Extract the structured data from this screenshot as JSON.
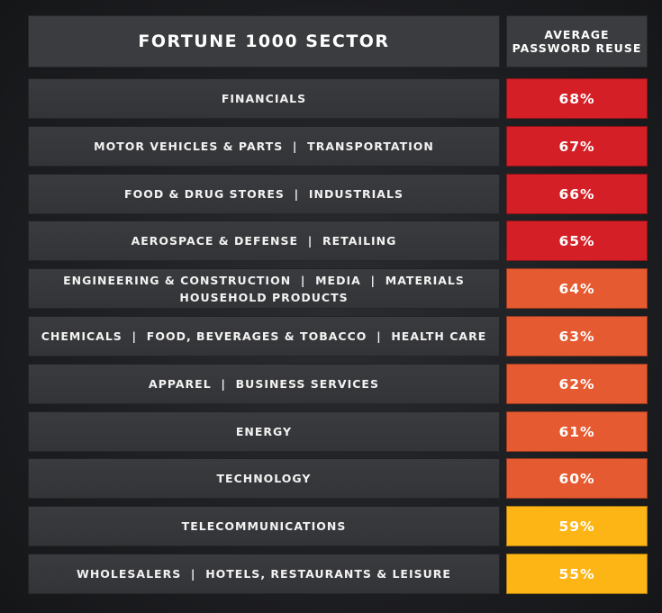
{
  "header": {
    "sector_title": "FORTUNE 1000 SECTOR",
    "metric_line1": "AVERAGE",
    "metric_line2": "PASSWORD REUSE"
  },
  "colors": {
    "high": "#d51f26",
    "mid": "#e55a30",
    "low": "#fdb515"
  },
  "chart_data": {
    "type": "table",
    "columns": [
      "FORTUNE 1000 SECTOR",
      "AVERAGE PASSWORD REUSE"
    ],
    "rows": [
      {
        "sector": "FINANCIALS",
        "sector_line2": "",
        "value": 68,
        "label": "68%",
        "color": "high"
      },
      {
        "sector": "MOTOR VEHICLES & PARTS  |  TRANSPORTATION",
        "sector_line2": "",
        "value": 67,
        "label": "67%",
        "color": "high"
      },
      {
        "sector": "FOOD & DRUG STORES  |  INDUSTRIALS",
        "sector_line2": "",
        "value": 66,
        "label": "66%",
        "color": "high"
      },
      {
        "sector": "AEROSPACE & DEFENSE  |  RETAILING",
        "sector_line2": "",
        "value": 65,
        "label": "65%",
        "color": "high"
      },
      {
        "sector": "ENGINEERING & CONSTRUCTION  |  MEDIA  |  MATERIALS",
        "sector_line2": "HOUSEHOLD PRODUCTS",
        "value": 64,
        "label": "64%",
        "color": "mid"
      },
      {
        "sector": "CHEMICALS  |  FOOD, BEVERAGES & TOBACCO  |  HEALTH CARE",
        "sector_line2": "",
        "value": 63,
        "label": "63%",
        "color": "mid"
      },
      {
        "sector": "APPAREL  |  BUSINESS SERVICES",
        "sector_line2": "",
        "value": 62,
        "label": "62%",
        "color": "mid"
      },
      {
        "sector": "ENERGY",
        "sector_line2": "",
        "value": 61,
        "label": "61%",
        "color": "mid"
      },
      {
        "sector": "TECHNOLOGY",
        "sector_line2": "",
        "value": 60,
        "label": "60%",
        "color": "mid"
      },
      {
        "sector": "TELECOMMUNICATIONS",
        "sector_line2": "",
        "value": 59,
        "label": "59%",
        "color": "low"
      },
      {
        "sector": "WHOLESALERS  |  HOTELS, RESTAURANTS & LEISURE",
        "sector_line2": "",
        "value": 55,
        "label": "55%",
        "color": "low"
      }
    ]
  }
}
